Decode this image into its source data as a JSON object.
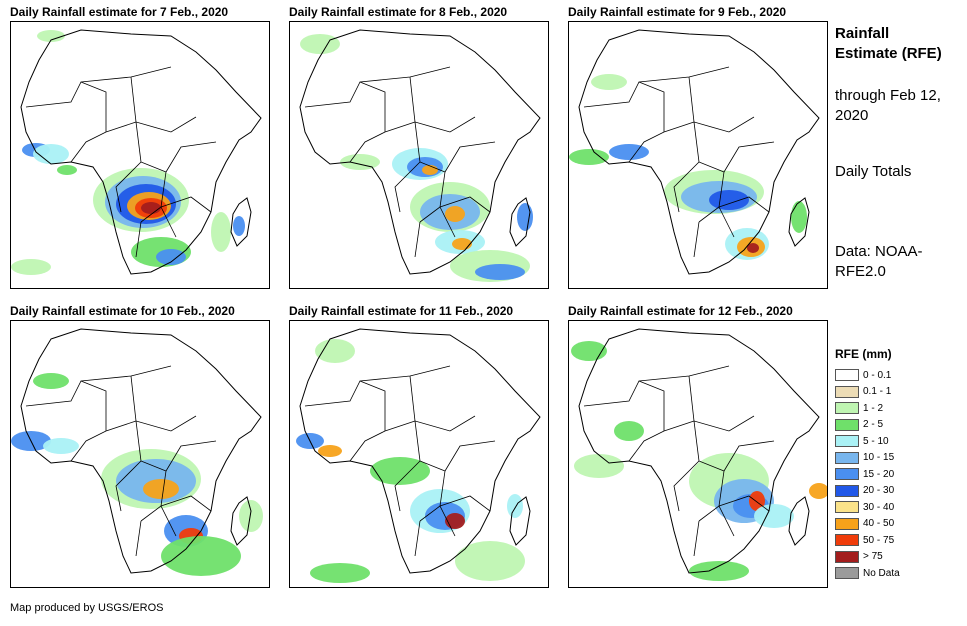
{
  "panels": [
    {
      "title": "Daily Rainfall estimate for 7 Feb., 2020",
      "pattern": "p7"
    },
    {
      "title": "Daily Rainfall estimate for 8 Feb., 2020",
      "pattern": "p8"
    },
    {
      "title": "Daily Rainfall estimate for 9 Feb., 2020",
      "pattern": "p9"
    },
    {
      "title": "Daily Rainfall estimate for 10 Feb., 2020",
      "pattern": "p10"
    },
    {
      "title": "Daily Rainfall estimate for 11 Feb., 2020",
      "pattern": "p11"
    },
    {
      "title": "Daily Rainfall estimate for 12 Feb., 2020",
      "pattern": "p12"
    }
  ],
  "side": {
    "title": "Rainfall Estimate (RFE)",
    "through": "through Feb 12, 2020",
    "totals": "Daily Totals",
    "source": "Data: NOAA-RFE2.0"
  },
  "legend": {
    "title": "RFE (mm)",
    "items": [
      {
        "label": "0 - 0.1",
        "color": "#ffffff"
      },
      {
        "label": "0.1 - 1",
        "color": "#ecdcb6"
      },
      {
        "label": "1 - 2",
        "color": "#bff5b2"
      },
      {
        "label": "2 - 5",
        "color": "#6fe06a"
      },
      {
        "label": "5 - 10",
        "color": "#aaf1f5"
      },
      {
        "label": "10 - 15",
        "color": "#78b6ee"
      },
      {
        "label": "15 - 20",
        "color": "#4a8ff0"
      },
      {
        "label": "20 - 30",
        "color": "#2158e8"
      },
      {
        "label": "30 - 40",
        "color": "#fbe38a"
      },
      {
        "label": "40 - 50",
        "color": "#f7a21a"
      },
      {
        "label": "50 - 75",
        "color": "#f03c0a"
      },
      {
        "label": "> 75",
        "color": "#a31d1d"
      },
      {
        "label": "No Data",
        "color": "#9b9b9b"
      }
    ]
  },
  "credit": "Map produced by USGS/EROS"
}
